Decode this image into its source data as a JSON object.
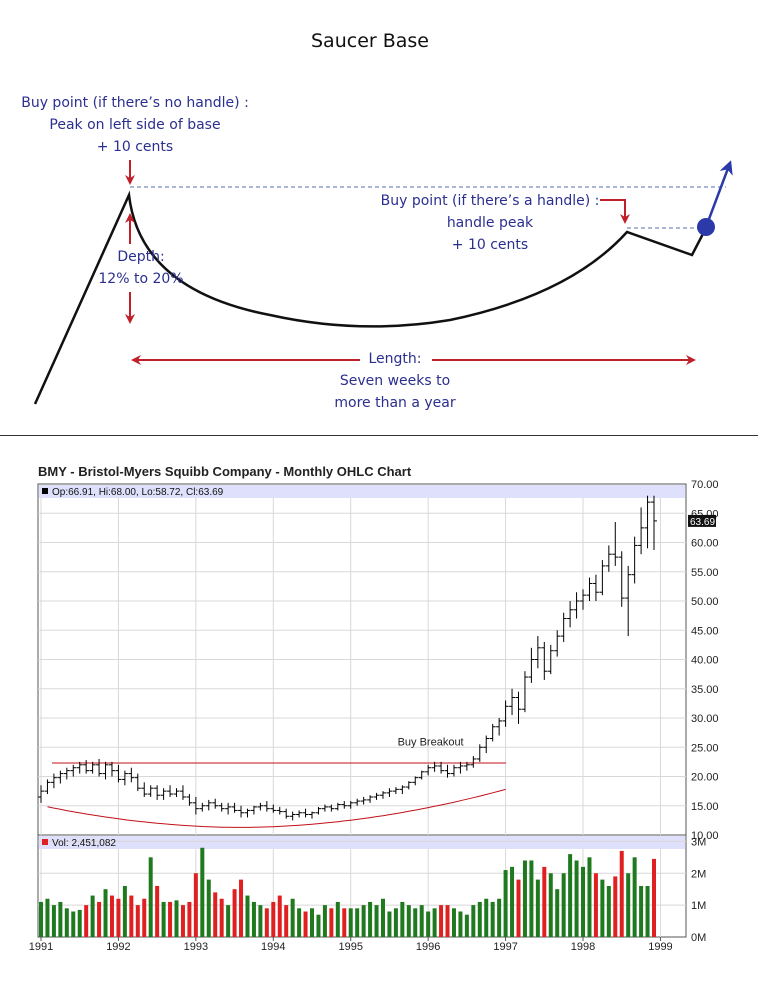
{
  "diagram": {
    "title": "Saucer Base",
    "buy_no_handle": [
      "Buy point (if there’s no handle) :",
      "Peak on left side of base",
      "+ 10 cents"
    ],
    "buy_handle": [
      "Buy point (if there’s a handle) :",
      "handle peak",
      "+ 10 cents"
    ],
    "depth": [
      "Depth:",
      "12% to 20%"
    ],
    "length": [
      "Length:",
      "Seven weeks to",
      "more than a year"
    ],
    "colors": {
      "text": "#2b2f8f",
      "arrow": "#c0202a",
      "curve": "#111111",
      "breakout": "#2b3aa8"
    }
  },
  "chart_title": "BMY - Bristol-Myers Squibb Company - Monthly OHLC Chart",
  "chart_data": [
    {
      "type": "ohlc",
      "legend": "Op:66.91, Hi:68.00, Lo:58.72, Cl:63.69",
      "last_value_label": "63.69",
      "annotation": "Buy Breakout",
      "ylim": [
        10,
        70
      ],
      "yticks": [
        "10.00",
        "15.00",
        "20.00",
        "25.00",
        "30.00",
        "35.00",
        "40.00",
        "45.00",
        "50.00",
        "55.00",
        "60.00",
        "65.00",
        "70.00"
      ],
      "xticks": [
        "1991",
        "1992",
        "1993",
        "1994",
        "1995",
        "1996",
        "1997",
        "1998",
        "1999"
      ],
      "x_start_year": 1991,
      "resistance_level": 22.3,
      "bars": [
        [
          16.5,
          18.5,
          15.5,
          17.5
        ],
        [
          17.5,
          19.5,
          17.0,
          19.0
        ],
        [
          19.0,
          20.5,
          18.0,
          19.8
        ],
        [
          19.8,
          21.0,
          18.8,
          20.5
        ],
        [
          20.5,
          21.5,
          19.5,
          21.0
        ],
        [
          21.0,
          22.0,
          20.0,
          21.5
        ],
        [
          21.5,
          22.5,
          20.5,
          22.0
        ],
        [
          22.0,
          22.8,
          20.5,
          21.0
        ],
        [
          21.0,
          22.5,
          20.5,
          22.0
        ],
        [
          22.0,
          23.0,
          20.0,
          20.5
        ],
        [
          20.5,
          22.5,
          19.5,
          22.0
        ],
        [
          22.0,
          22.5,
          20.0,
          21.0
        ],
        [
          21.0,
          22.0,
          19.0,
          19.5
        ],
        [
          19.5,
          21.0,
          18.5,
          20.5
        ],
        [
          20.5,
          21.5,
          19.0,
          19.8
        ],
        [
          19.8,
          20.5,
          17.5,
          18.0
        ],
        [
          18.0,
          19.0,
          16.5,
          17.0
        ],
        [
          17.0,
          18.5,
          16.5,
          18.0
        ],
        [
          18.0,
          18.5,
          16.0,
          16.8
        ],
        [
          16.8,
          18.0,
          16.0,
          17.5
        ],
        [
          17.5,
          18.5,
          16.5,
          17.0
        ],
        [
          17.0,
          18.0,
          16.5,
          17.5
        ],
        [
          17.5,
          18.5,
          16.0,
          16.5
        ],
        [
          16.5,
          17.0,
          15.0,
          15.5
        ],
        [
          15.5,
          16.5,
          13.5,
          14.5
        ],
        [
          14.5,
          15.5,
          14.0,
          15.0
        ],
        [
          15.0,
          16.0,
          14.2,
          15.5
        ],
        [
          15.5,
          16.2,
          14.5,
          15.0
        ],
        [
          15.0,
          15.5,
          14.0,
          14.5
        ],
        [
          14.5,
          15.5,
          13.5,
          14.8
        ],
        [
          14.8,
          15.5,
          13.8,
          14.2
        ],
        [
          14.2,
          15.0,
          13.0,
          13.8
        ],
        [
          13.8,
          14.5,
          13.0,
          14.2
        ],
        [
          14.2,
          15.0,
          13.5,
          14.8
        ],
        [
          14.8,
          15.5,
          14.2,
          15.0
        ],
        [
          15.0,
          15.8,
          14.0,
          14.5
        ],
        [
          14.5,
          15.2,
          13.8,
          14.2
        ],
        [
          14.2,
          14.8,
          13.5,
          14.0
        ],
        [
          14.0,
          14.5,
          12.8,
          13.2
        ],
        [
          13.2,
          14.0,
          12.5,
          13.5
        ],
        [
          13.5,
          14.2,
          13.0,
          13.8
        ],
        [
          13.8,
          14.5,
          13.0,
          13.5
        ],
        [
          13.5,
          14.0,
          12.8,
          13.8
        ],
        [
          13.8,
          14.8,
          13.5,
          14.5
        ],
        [
          14.5,
          15.2,
          14.0,
          14.8
        ],
        [
          14.8,
          15.2,
          14.0,
          14.5
        ],
        [
          14.5,
          15.5,
          14.2,
          15.2
        ],
        [
          15.2,
          15.8,
          14.5,
          15.0
        ],
        [
          15.0,
          15.8,
          14.5,
          15.5
        ],
        [
          15.5,
          16.2,
          15.0,
          15.8
        ],
        [
          15.8,
          16.5,
          15.2,
          16.0
        ],
        [
          16.0,
          16.8,
          15.5,
          16.5
        ],
        [
          16.5,
          17.2,
          16.0,
          16.8
        ],
        [
          16.8,
          17.5,
          16.2,
          17.2
        ],
        [
          17.2,
          18.0,
          16.5,
          17.5
        ],
        [
          17.5,
          18.2,
          17.0,
          17.8
        ],
        [
          17.8,
          18.5,
          17.0,
          18.2
        ],
        [
          18.2,
          19.2,
          17.8,
          19.0
        ],
        [
          19.0,
          20.0,
          18.5,
          19.8
        ],
        [
          19.8,
          21.0,
          19.5,
          20.8
        ],
        [
          20.8,
          22.0,
          20.2,
          21.5
        ],
        [
          21.5,
          22.5,
          20.8,
          21.8
        ],
        [
          21.8,
          22.5,
          20.5,
          21.0
        ],
        [
          21.0,
          22.0,
          19.8,
          20.5
        ],
        [
          20.5,
          22.0,
          20.0,
          21.5
        ],
        [
          21.5,
          22.5,
          20.5,
          21.8
        ],
        [
          21.8,
          22.5,
          21.0,
          22.0
        ],
        [
          22.0,
          23.5,
          21.5,
          23.0
        ],
        [
          23.0,
          25.5,
          22.5,
          25.0
        ],
        [
          25.0,
          27.0,
          24.0,
          26.5
        ],
        [
          26.5,
          29.0,
          26.0,
          28.5
        ],
        [
          28.5,
          30.0,
          27.0,
          29.5
        ],
        [
          29.5,
          33.0,
          28.5,
          32.0
        ],
        [
          32.0,
          35.0,
          30.5,
          33.5
        ],
        [
          33.5,
          34.5,
          29.0,
          31.5
        ],
        [
          31.5,
          38.0,
          31.0,
          37.0
        ],
        [
          37.0,
          42.0,
          36.0,
          40.0
        ],
        [
          40.0,
          44.0,
          38.5,
          42.0
        ],
        [
          42.0,
          43.0,
          36.5,
          38.0
        ],
        [
          38.0,
          42.5,
          37.5,
          41.5
        ],
        [
          41.5,
          45.0,
          40.5,
          44.0
        ],
        [
          44.0,
          48.0,
          43.0,
          47.0
        ],
        [
          47.0,
          50.0,
          45.5,
          48.5
        ],
        [
          48.5,
          51.5,
          47.0,
          50.0
        ],
        [
          50.0,
          52.0,
          48.5,
          51.0
        ],
        [
          51.0,
          54.0,
          50.0,
          53.0
        ],
        [
          53.0,
          54.5,
          50.0,
          51.5
        ],
        [
          51.5,
          57.0,
          51.0,
          56.0
        ],
        [
          56.0,
          59.5,
          55.0,
          58.0
        ],
        [
          58.0,
          63.5,
          56.0,
          57.5
        ],
        [
          57.5,
          58.5,
          49.0,
          50.5
        ],
        [
          50.5,
          56.0,
          44.0,
          54.5
        ],
        [
          54.5,
          61.0,
          53.0,
          59.5
        ],
        [
          59.5,
          66.0,
          58.0,
          62.5
        ],
        [
          62.5,
          68.0,
          59.0,
          66.9
        ],
        [
          66.91,
          68.0,
          58.72,
          63.69
        ]
      ],
      "volume": {
        "legend": "Vol: 2,451,082",
        "ylim": [
          0,
          3.2
        ],
        "yticks": [
          "0M",
          "1M",
          "2M",
          "3M"
        ],
        "values": [
          1.1,
          1.2,
          1.0,
          1.1,
          0.9,
          0.8,
          0.85,
          1.0,
          1.3,
          1.1,
          1.5,
          1.3,
          1.2,
          1.6,
          1.3,
          1.0,
          1.2,
          2.5,
          1.6,
          1.1,
          1.1,
          1.15,
          1.0,
          1.1,
          2.0,
          2.8,
          1.8,
          1.4,
          1.2,
          1.0,
          1.5,
          1.8,
          1.3,
          1.1,
          1.0,
          0.9,
          1.1,
          1.3,
          1.0,
          1.2,
          0.9,
          0.8,
          0.9,
          0.7,
          1.0,
          0.9,
          1.1,
          0.9,
          0.9,
          0.9,
          1.0,
          1.1,
          1.0,
          1.2,
          0.8,
          0.9,
          1.1,
          1.0,
          0.9,
          1.0,
          0.8,
          0.9,
          1.0,
          1.0,
          0.9,
          0.8,
          0.7,
          1.0,
          1.1,
          1.2,
          1.1,
          1.2,
          2.1,
          2.2,
          1.8,
          2.4,
          2.4,
          1.8,
          2.2,
          2.0,
          1.5,
          2.0,
          2.6,
          2.4,
          2.2,
          2.5,
          2.0,
          1.8,
          1.6,
          1.9,
          2.7,
          2.0,
          2.5,
          1.6,
          1.6,
          2.45
        ],
        "up_color": "#1f7a1f",
        "down_color": "#e02020"
      },
      "price_color": "#000000",
      "trendline_color": "#c0101a",
      "band_color": "#dfe0fb"
    }
  ]
}
